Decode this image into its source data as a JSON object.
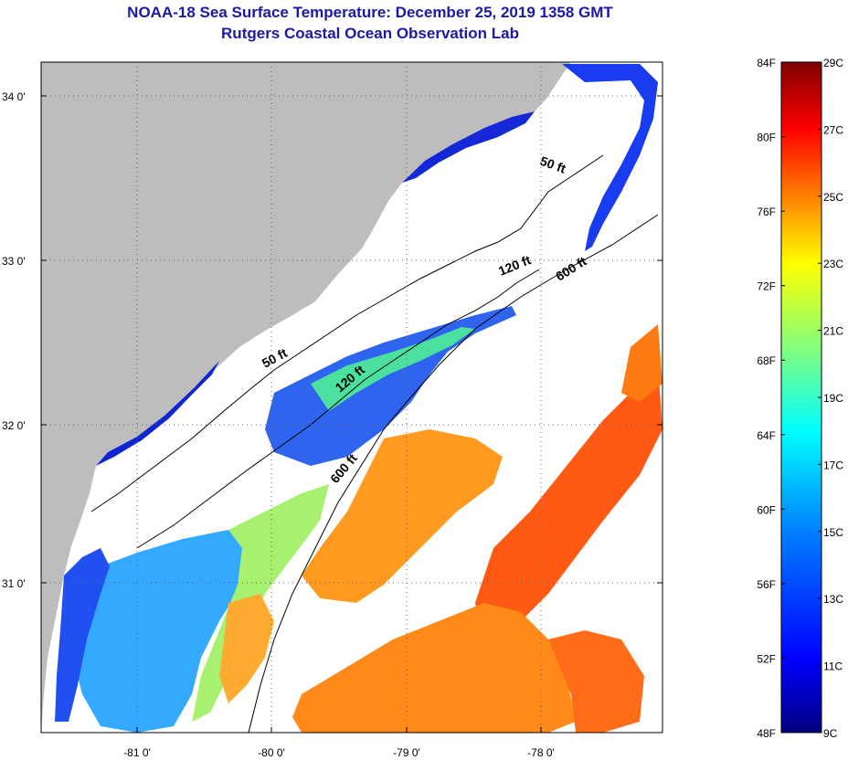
{
  "title": {
    "line1": "NOAA-18 Sea Surface Temperature:  December 25, 2019 1358 GMT",
    "line2": "Rutgers Coastal Ocean Observation Lab"
  },
  "map": {
    "lat_labels": [
      "34 0'",
      "33 0'",
      "32 0'",
      "31 0'"
    ],
    "lon_labels": [
      "-81 0'",
      "-80 0'",
      "-79 0'",
      "-78 0'"
    ],
    "contour_labels": [
      "50 ft",
      "120 ft",
      "600 ft",
      "50 ft",
      "120 ft",
      "600 ft"
    ]
  },
  "colorbar": {
    "fahrenheit_labels": [
      "84F",
      "80F",
      "76F",
      "72F",
      "68F",
      "64F",
      "60F",
      "56F",
      "52F",
      "48F"
    ],
    "celsius_labels": [
      "29C",
      "27C",
      "25C",
      "23C",
      "21C",
      "19C",
      "17C",
      "15C",
      "13C",
      "11C",
      "9C"
    ],
    "colors": [
      "#00007f",
      "#0000ff",
      "#0080ff",
      "#00ffff",
      "#80ff80",
      "#ffff00",
      "#ff8000",
      "#ff0000",
      "#7f0000"
    ]
  },
  "colors": {
    "land": "#bdbdbd",
    "title": "#1a1aa6"
  }
}
